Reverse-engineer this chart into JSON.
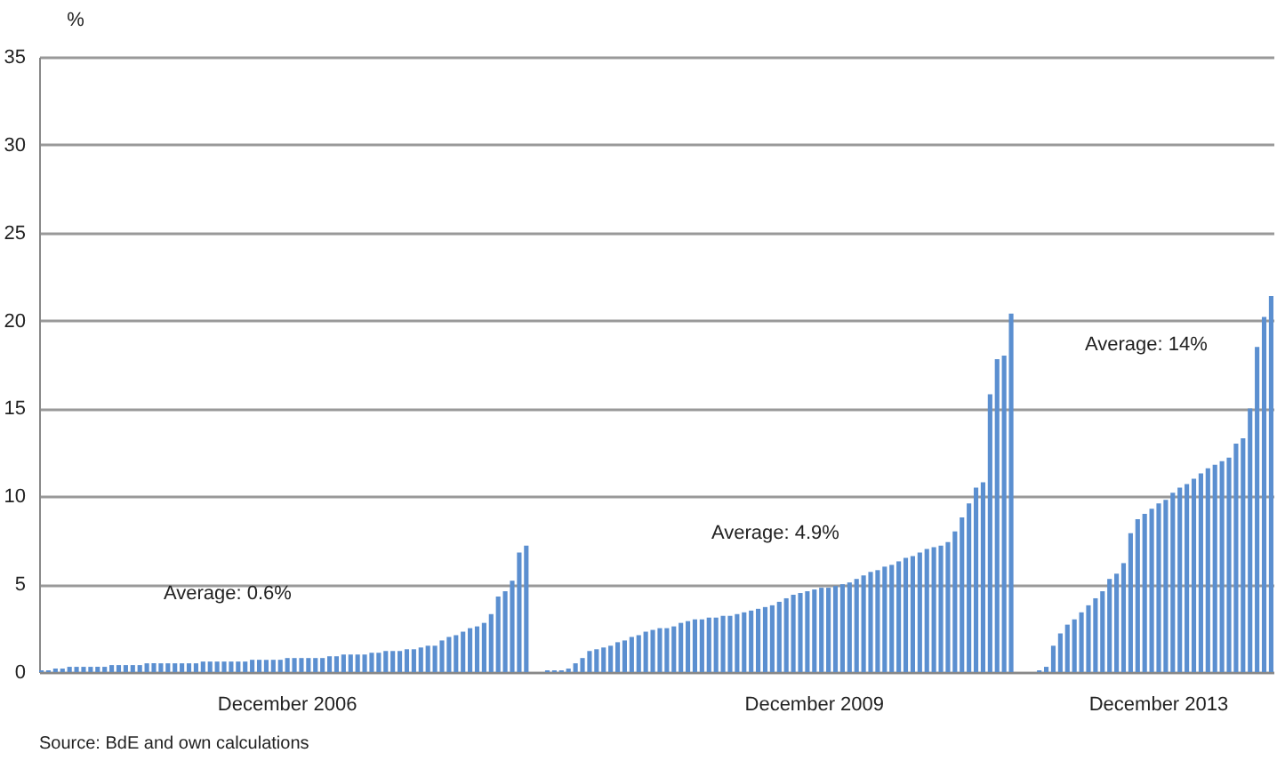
{
  "chart_data": {
    "type": "bar",
    "ylabel": "%",
    "categories": [
      null,
      null,
      null,
      null,
      null,
      null,
      null,
      null,
      null,
      null,
      null,
      null,
      null,
      null,
      null,
      null,
      null,
      null,
      null,
      null,
      null,
      null,
      null,
      null,
      null,
      null,
      null,
      null,
      null,
      null,
      null,
      null,
      null,
      null,
      null,
      "December 2006",
      null,
      null,
      null,
      null,
      null,
      null,
      null,
      null,
      null,
      null,
      null,
      null,
      null,
      null,
      null,
      null,
      null,
      null,
      null,
      null,
      null,
      null,
      null,
      null,
      null,
      null,
      null,
      null,
      null,
      null,
      null,
      null,
      null,
      null,
      null,
      null,
      null,
      null,
      null,
      null,
      null,
      null,
      null,
      null,
      null,
      null,
      null,
      null,
      null,
      null,
      null,
      null,
      null,
      null,
      null,
      null,
      null,
      null,
      null,
      null,
      null,
      null,
      null,
      null,
      null,
      null,
      null,
      null,
      null,
      null,
      null,
      null,
      null,
      null,
      "December 2009",
      null,
      null,
      null,
      null,
      null,
      null,
      null,
      null,
      null,
      null,
      null,
      null,
      null,
      null,
      null,
      null,
      null,
      null,
      null,
      null,
      null,
      null,
      null,
      null,
      null,
      null,
      null,
      null,
      null,
      null,
      null,
      null,
      null,
      null,
      null,
      null,
      null,
      null,
      null,
      null,
      null,
      null,
      null,
      null,
      null,
      null,
      null,
      null,
      "December 2013",
      null,
      null,
      null,
      null,
      null,
      null,
      null,
      null,
      null,
      null,
      null,
      null,
      null,
      null,
      null,
      null
    ],
    "values": [
      0.1,
      0.1,
      0.2,
      0.2,
      0.3,
      0.3,
      0.3,
      0.3,
      0.3,
      0.3,
      0.4,
      0.4,
      0.4,
      0.4,
      0.4,
      0.5,
      0.5,
      0.5,
      0.5,
      0.5,
      0.5,
      0.5,
      0.5,
      0.6,
      0.6,
      0.6,
      0.6,
      0.6,
      0.6,
      0.6,
      0.7,
      0.7,
      0.7,
      0.7,
      0.7,
      0.8,
      0.8,
      0.8,
      0.8,
      0.8,
      0.8,
      0.9,
      0.9,
      1.0,
      1.0,
      1.0,
      1.0,
      1.1,
      1.1,
      1.2,
      1.2,
      1.2,
      1.3,
      1.3,
      1.4,
      1.5,
      1.5,
      1.8,
      2.0,
      2.1,
      2.3,
      2.5,
      2.6,
      2.8,
      3.3,
      4.3,
      4.6,
      5.2,
      6.8,
      7.2,
      null,
      null,
      0.1,
      0.1,
      0.1,
      0.2,
      0.5,
      0.8,
      1.2,
      1.3,
      1.4,
      1.5,
      1.7,
      1.8,
      2.0,
      2.1,
      2.3,
      2.4,
      2.5,
      2.5,
      2.6,
      2.8,
      2.9,
      3.0,
      3.0,
      3.1,
      3.1,
      3.2,
      3.2,
      3.3,
      3.4,
      3.5,
      3.6,
      3.7,
      3.8,
      4.0,
      4.2,
      4.4,
      4.5,
      4.6,
      4.7,
      4.8,
      4.8,
      4.9,
      5.0,
      5.1,
      5.3,
      5.5,
      5.7,
      5.8,
      6.0,
      6.1,
      6.3,
      6.5,
      6.6,
      6.8,
      7.0,
      7.1,
      7.2,
      7.4,
      8.0,
      8.8,
      9.6,
      10.5,
      10.8,
      15.8,
      17.8,
      18.0,
      20.4,
      null,
      null,
      null,
      0.1,
      0.3,
      1.5,
      2.2,
      2.7,
      3.0,
      3.4,
      3.8,
      4.2,
      4.6,
      5.3,
      5.6,
      6.2,
      7.9,
      8.7,
      9.0,
      9.3,
      9.6,
      9.8,
      10.2,
      10.5,
      10.7,
      11.0,
      11.3,
      11.6,
      11.8,
      12.0,
      12.2,
      13.0,
      13.3,
      15.0,
      18.5,
      20.2,
      21.4
    ],
    "color": "#5b8fd0",
    "ylim": [
      0,
      35
    ],
    "yticks": [
      0,
      5,
      10,
      15,
      20,
      25,
      30,
      35
    ],
    "grid": "y",
    "annotations": [
      "Average: 0.6%",
      "Average: 4.9%",
      "Average: 14%",
      "Source: BdE and own calculations"
    ]
  }
}
